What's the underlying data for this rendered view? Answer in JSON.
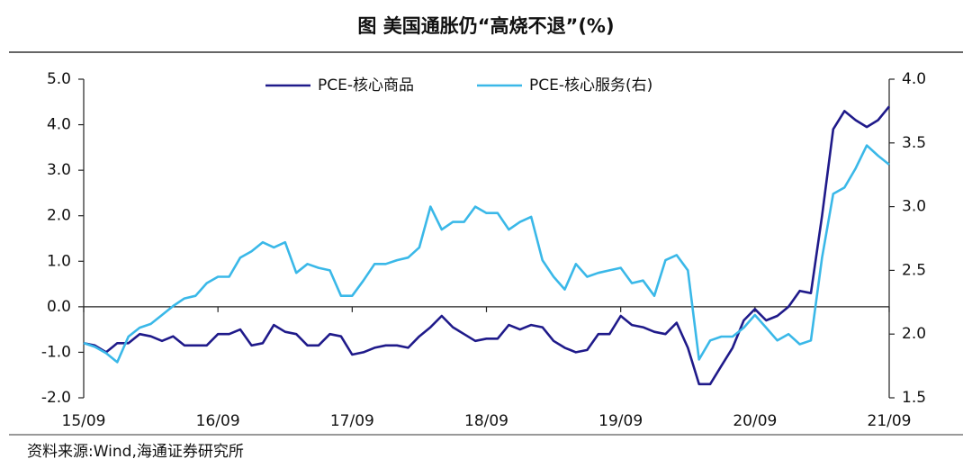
{
  "chart_data": {
    "type": "line",
    "title": "图  美国通胀仍“高烧不退”(%)",
    "source": "资料来源:Wind,海通证券研究所",
    "categories": [
      "15/09",
      null,
      null,
      null,
      null,
      null,
      null,
      null,
      null,
      null,
      null,
      null,
      "16/09",
      null,
      null,
      null,
      null,
      null,
      null,
      null,
      null,
      null,
      null,
      null,
      "17/09",
      null,
      null,
      null,
      null,
      null,
      null,
      null,
      null,
      null,
      null,
      null,
      "18/09",
      null,
      null,
      null,
      null,
      null,
      null,
      null,
      null,
      null,
      null,
      null,
      "19/09",
      null,
      null,
      null,
      null,
      null,
      null,
      null,
      null,
      null,
      null,
      null,
      "20/09",
      null,
      null,
      null,
      null,
      null,
      null,
      null,
      null,
      null,
      null,
      null,
      "21/09"
    ],
    "series": [
      {
        "name": "PCE-核心商品",
        "color": "#1f1a8a",
        "axis": "y",
        "values": [
          -0.8,
          -0.85,
          -1.0,
          -0.8,
          -0.8,
          -0.6,
          -0.65,
          -0.75,
          -0.65,
          -0.85,
          -0.85,
          -0.85,
          -0.6,
          -0.6,
          -0.5,
          -0.85,
          -0.8,
          -0.4,
          -0.55,
          -0.6,
          -0.85,
          -0.85,
          -0.6,
          -0.65,
          -1.05,
          -1.0,
          -0.9,
          -0.85,
          -0.85,
          -0.9,
          -0.65,
          -0.45,
          -0.2,
          -0.45,
          -0.6,
          -0.75,
          -0.7,
          -0.7,
          -0.4,
          -0.5,
          -0.4,
          -0.45,
          -0.75,
          -0.9,
          -1.0,
          -0.95,
          -0.6,
          -0.6,
          -0.2,
          -0.4,
          -0.45,
          -0.55,
          -0.6,
          -0.35,
          -0.9,
          -1.7,
          -1.7,
          -1.3,
          -0.9,
          -0.3,
          -0.05,
          -0.3,
          -0.2,
          0.0,
          0.35,
          0.3,
          2.0,
          3.9,
          4.3,
          4.1,
          3.95,
          4.1,
          4.4
        ]
      },
      {
        "name": "PCE-核心服务(右)",
        "color": "#3ab8e8",
        "axis": "y2",
        "values": [
          1.93,
          1.9,
          1.85,
          1.78,
          1.98,
          2.05,
          2.08,
          2.15,
          2.22,
          2.28,
          2.3,
          2.4,
          2.45,
          2.45,
          2.6,
          2.65,
          2.72,
          2.68,
          2.72,
          2.48,
          2.55,
          2.52,
          2.5,
          2.3,
          2.3,
          2.42,
          2.55,
          2.55,
          2.58,
          2.6,
          2.68,
          3.0,
          2.82,
          2.88,
          2.88,
          3.0,
          2.95,
          2.95,
          2.82,
          2.88,
          2.92,
          2.58,
          2.45,
          2.35,
          2.55,
          2.45,
          2.48,
          2.5,
          2.52,
          2.4,
          2.42,
          2.3,
          2.58,
          2.62,
          2.5,
          1.8,
          1.95,
          1.98,
          1.98,
          2.05,
          2.15,
          2.05,
          1.95,
          2.0,
          1.92,
          1.95,
          2.6,
          3.1,
          3.15,
          3.3,
          3.48,
          3.4,
          3.33
        ]
      }
    ],
    "ylim": [
      -2,
      5
    ],
    "yticks": [
      {
        "value": -2,
        "label": "-2.0"
      },
      {
        "value": -1,
        "label": "-1.0"
      },
      {
        "value": 0,
        "label": "0.0"
      },
      {
        "value": 1,
        "label": "1.0"
      },
      {
        "value": 2,
        "label": "2.0"
      },
      {
        "value": 3,
        "label": "3.0"
      },
      {
        "value": 4,
        "label": "4.0"
      },
      {
        "value": 5,
        "label": "5.0"
      }
    ],
    "y2lim": [
      1.5,
      4
    ],
    "y2ticks": [
      {
        "value": 1.5,
        "label": "1.5"
      },
      {
        "value": 2,
        "label": "2.0"
      },
      {
        "value": 2.5,
        "label": "2.5"
      },
      {
        "value": 3,
        "label": "3.0"
      },
      {
        "value": 3.5,
        "label": "3.5"
      },
      {
        "value": 4,
        "label": "4.0"
      }
    ],
    "legend": "top"
  }
}
